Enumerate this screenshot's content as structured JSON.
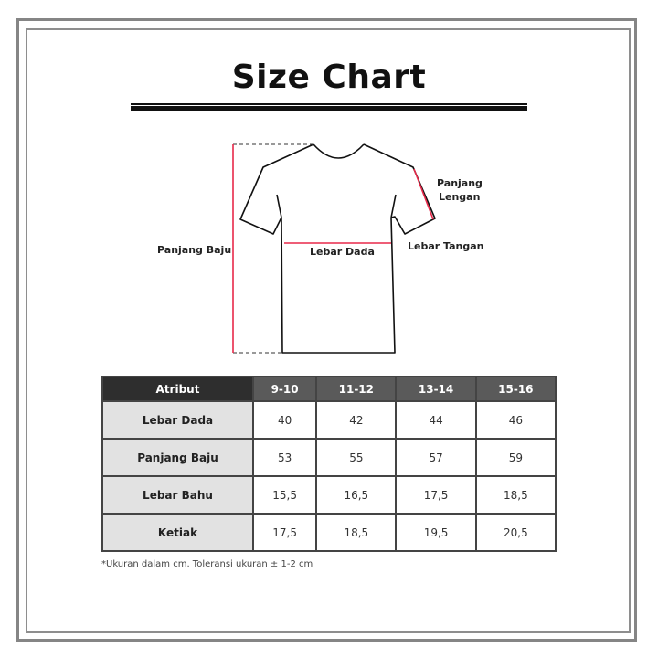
{
  "title": "Size Chart",
  "diagram": {
    "labels": {
      "panjang_baju": "Panjang Baju",
      "lebar_dada": "Lebar Dada",
      "panjang_lengan": [
        "Panjang",
        "Lengan"
      ],
      "lebar_tangan": "Lebar Tangan"
    },
    "measure_color": "#e8294a"
  },
  "table": {
    "headers": [
      "Atribut",
      "9-10",
      "11-12",
      "13-14",
      "15-16"
    ],
    "rows": [
      {
        "label": "Lebar Dada",
        "values": [
          "40",
          "42",
          "44",
          "46"
        ]
      },
      {
        "label": "Panjang Baju",
        "values": [
          "53",
          "55",
          "57",
          "59"
        ]
      },
      {
        "label": "Lebar Bahu",
        "values": [
          "15,5",
          "16,5",
          "17,5",
          "18,5"
        ]
      },
      {
        "label": "Ketiak",
        "values": [
          "17,5",
          "18,5",
          "19,5",
          "20,5"
        ]
      }
    ]
  },
  "note": "*Ukuran dalam cm. Toleransi ukuran ± 1-2 cm"
}
